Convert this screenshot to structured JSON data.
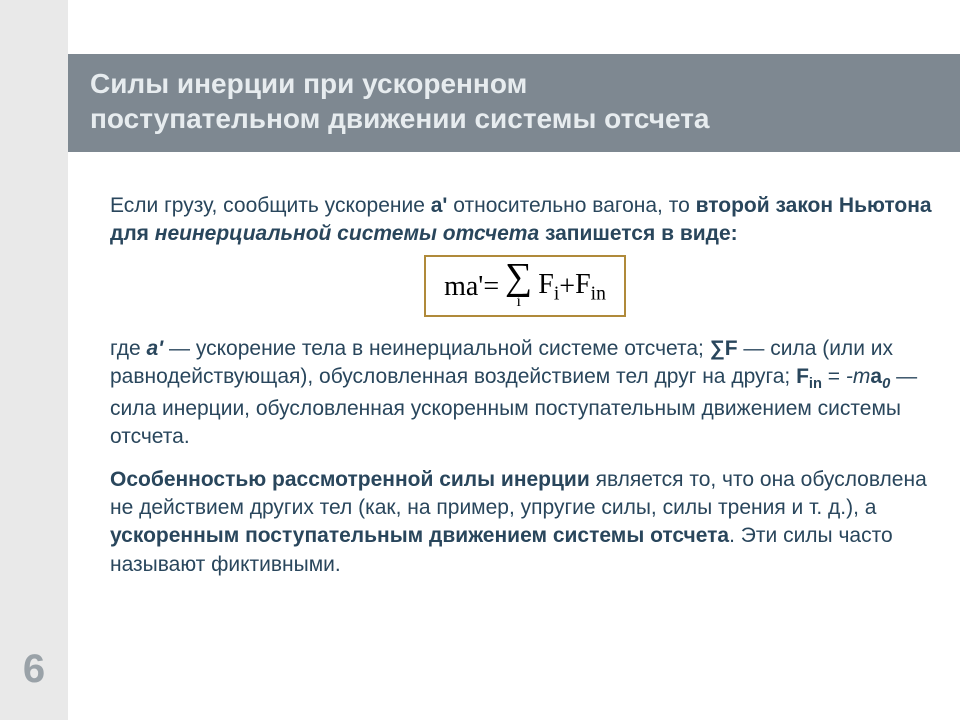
{
  "colors": {
    "gutter_bg": "#e9e9e9",
    "title_bg": "#7e8891",
    "title_fg": "#e7ecef",
    "body_fg": "#29465c",
    "formula_border": "#b08a3a",
    "page_num_fg": "#9aa2a8",
    "page_bg": "#ffffff"
  },
  "title": {
    "line1": "Силы инерции при ускоренном",
    "line2": "поступательном движении системы отсчета"
  },
  "intro": {
    "prefix": "Если грузу, сообщить ускорение ",
    "accel": "a'",
    "mid": " относительно вагона, то ",
    "bold1": "второй закон Ньютона для ",
    "boldital": "неинерциальной системы отсчета",
    "bold2": " запишется в виде:"
  },
  "formula": {
    "lhs": "ma'",
    "eq": " = ",
    "sigma": "∑",
    "sigma_index": "i",
    "term1_base": "F",
    "term1_sub": "i",
    "plus": " + ",
    "term2_base": "F",
    "term2_sub": "in"
  },
  "where": {
    "t1": "где ",
    "a": "a'",
    "t2": " — ускорение тела в неинерциальной системе отсчета; ",
    "sumF": "∑F",
    "t3": " — сила (или их равнодействующая), обусловленная воздействием тел друг на друга; ",
    "fin_base": "F",
    "fin_sub": "in",
    "t4": " = ",
    "minus_m": "-m",
    "a0_base": "a",
    "a0_sub": "0",
    "t5": " — сила инерции, обусловленная ускоренным поступательным движением системы отсчета."
  },
  "feature": {
    "bold1": "Особенностью рассмотренной силы инерции",
    "t1": " является то, что она обусловлена не действием других тел (как, на пример, упругие силы, силы трения и т. д.), а ",
    "bold2": "ускоренным поступательным движением системы отсчета",
    "t2": ". Эти силы часто называют фиктивными."
  },
  "page_number": "6"
}
